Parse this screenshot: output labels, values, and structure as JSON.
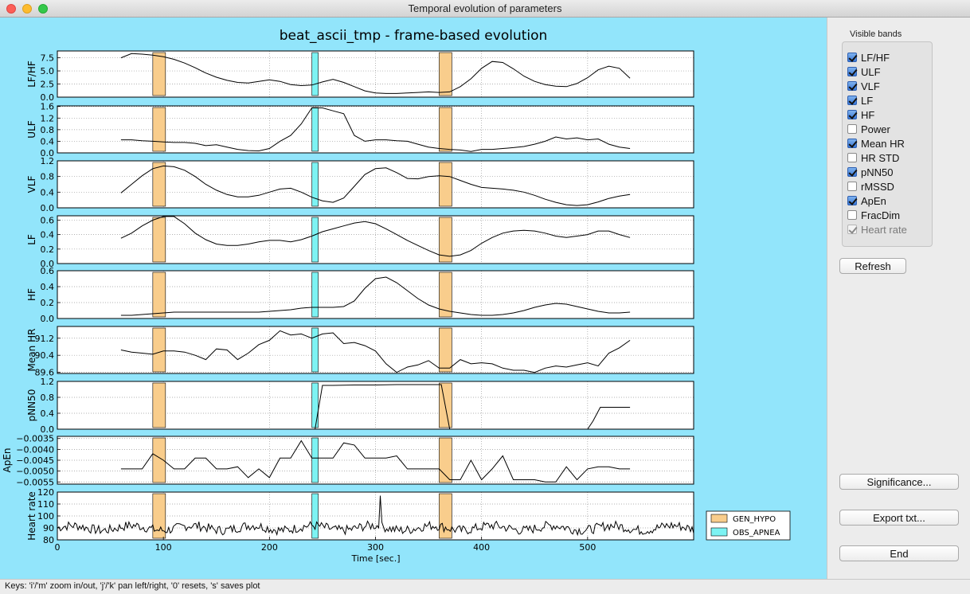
{
  "window": {
    "title": "Temporal evolution of parameters"
  },
  "figure": {
    "title": "beat_ascii_tmp - frame-based evolution",
    "xlabel": "Time [sec.]",
    "x_ticks": [
      "0",
      "100",
      "200",
      "300",
      "400",
      "500"
    ],
    "legend": [
      {
        "label": "GEN_HYPO",
        "color": "#f9cd8c"
      },
      {
        "label": "OBS_APNEA",
        "color": "#7df3f3"
      }
    ]
  },
  "chart_data": [
    {
      "type": "line",
      "ylabel": "LF/HF",
      "xlim": [
        0,
        600
      ],
      "ylim": [
        0,
        8.8
      ],
      "yticks": [
        "0.0",
        "2.5",
        "5.0",
        "7.5"
      ],
      "x": [
        60,
        70,
        80,
        90,
        100,
        110,
        120,
        130,
        140,
        150,
        160,
        170,
        180,
        190,
        200,
        210,
        220,
        230,
        240,
        250,
        260,
        270,
        280,
        290,
        300,
        310,
        320,
        330,
        340,
        350,
        360,
        370,
        380,
        390,
        400,
        410,
        420,
        430,
        440,
        450,
        460,
        470,
        480,
        490,
        500,
        510,
        520,
        530,
        540
      ],
      "values": [
        7.5,
        8.3,
        8.2,
        8.0,
        7.7,
        7.2,
        6.5,
        5.6,
        4.6,
        3.8,
        3.2,
        2.8,
        2.7,
        3.0,
        3.3,
        3.0,
        2.4,
        2.2,
        2.3,
        2.9,
        3.4,
        2.8,
        2.0,
        1.2,
        0.8,
        0.7,
        0.7,
        0.8,
        0.9,
        1.0,
        0.9,
        1.0,
        2.0,
        3.5,
        5.5,
        6.8,
        6.6,
        5.4,
        4.0,
        3.0,
        2.4,
        2.1,
        2.0,
        2.6,
        3.7,
        5.2,
        5.9,
        5.5,
        3.6
      ]
    },
    {
      "type": "line",
      "ylabel": "ULF",
      "xlim": [
        0,
        600
      ],
      "ylim": [
        0,
        1.62
      ],
      "yticks": [
        "0.0",
        "0.4",
        "0.8",
        "1.2",
        "1.6"
      ],
      "x": [
        60,
        70,
        80,
        90,
        100,
        110,
        120,
        130,
        140,
        150,
        160,
        170,
        180,
        190,
        200,
        210,
        220,
        230,
        240,
        250,
        260,
        270,
        280,
        290,
        300,
        310,
        320,
        330,
        340,
        350,
        360,
        370,
        380,
        390,
        400,
        410,
        420,
        430,
        440,
        450,
        460,
        470,
        480,
        490,
        500,
        510,
        520,
        530,
        540
      ],
      "values": [
        0.45,
        0.45,
        0.42,
        0.4,
        0.38,
        0.36,
        0.36,
        0.33,
        0.25,
        0.28,
        0.2,
        0.12,
        0.08,
        0.07,
        0.15,
        0.4,
        0.6,
        1.0,
        1.55,
        1.55,
        1.45,
        1.35,
        0.6,
        0.4,
        0.45,
        0.45,
        0.42,
        0.4,
        0.3,
        0.2,
        0.15,
        0.12,
        0.1,
        0.05,
        0.12,
        0.12,
        0.15,
        0.18,
        0.22,
        0.3,
        0.4,
        0.55,
        0.48,
        0.52,
        0.45,
        0.48,
        0.3,
        0.2,
        0.15
      ]
    },
    {
      "type": "line",
      "ylabel": "VLF",
      "xlim": [
        0,
        600
      ],
      "ylim": [
        0,
        1.2
      ],
      "yticks": [
        "0.0",
        "0.4",
        "0.8",
        "1.2"
      ],
      "x": [
        60,
        70,
        80,
        90,
        100,
        110,
        120,
        130,
        140,
        150,
        160,
        170,
        180,
        190,
        200,
        210,
        220,
        230,
        240,
        250,
        260,
        270,
        280,
        290,
        300,
        310,
        320,
        330,
        340,
        350,
        360,
        370,
        380,
        390,
        400,
        410,
        420,
        430,
        440,
        450,
        460,
        470,
        480,
        490,
        500,
        510,
        520,
        530,
        540
      ],
      "values": [
        0.38,
        0.6,
        0.82,
        1.0,
        1.07,
        1.05,
        0.96,
        0.8,
        0.6,
        0.45,
        0.34,
        0.28,
        0.28,
        0.32,
        0.4,
        0.48,
        0.5,
        0.4,
        0.27,
        0.18,
        0.14,
        0.25,
        0.55,
        0.85,
        1.0,
        1.02,
        0.9,
        0.75,
        0.74,
        0.8,
        0.82,
        0.8,
        0.7,
        0.6,
        0.52,
        0.5,
        0.48,
        0.45,
        0.4,
        0.32,
        0.22,
        0.14,
        0.08,
        0.06,
        0.08,
        0.15,
        0.24,
        0.3,
        0.34
      ]
    },
    {
      "type": "line",
      "ylabel": "LF",
      "xlim": [
        0,
        600
      ],
      "ylim": [
        0,
        0.66
      ],
      "yticks": [
        "0.0",
        "0.2",
        "0.4",
        "0.6"
      ],
      "x": [
        60,
        70,
        80,
        90,
        100,
        110,
        120,
        130,
        140,
        150,
        160,
        170,
        180,
        190,
        200,
        210,
        220,
        230,
        240,
        250,
        260,
        270,
        280,
        290,
        300,
        310,
        320,
        330,
        340,
        350,
        360,
        370,
        380,
        390,
        400,
        410,
        420,
        430,
        440,
        450,
        460,
        470,
        480,
        490,
        500,
        510,
        520,
        530,
        540
      ],
      "values": [
        0.35,
        0.42,
        0.52,
        0.6,
        0.65,
        0.65,
        0.55,
        0.42,
        0.33,
        0.27,
        0.25,
        0.25,
        0.27,
        0.3,
        0.32,
        0.32,
        0.3,
        0.33,
        0.38,
        0.44,
        0.48,
        0.52,
        0.56,
        0.58,
        0.55,
        0.48,
        0.4,
        0.32,
        0.25,
        0.18,
        0.12,
        0.1,
        0.12,
        0.18,
        0.28,
        0.36,
        0.42,
        0.45,
        0.46,
        0.45,
        0.42,
        0.38,
        0.36,
        0.38,
        0.4,
        0.45,
        0.45,
        0.4,
        0.36
      ]
    },
    {
      "type": "line",
      "ylabel": "HF",
      "xlim": [
        0,
        600
      ],
      "ylim": [
        0,
        0.6
      ],
      "yticks": [
        "0.0",
        "0.2",
        "0.4",
        "0.6"
      ],
      "x": [
        60,
        70,
        80,
        90,
        100,
        110,
        120,
        130,
        140,
        150,
        160,
        170,
        180,
        190,
        200,
        210,
        220,
        230,
        240,
        250,
        260,
        270,
        280,
        290,
        300,
        310,
        320,
        330,
        340,
        350,
        360,
        370,
        380,
        390,
        400,
        410,
        420,
        430,
        440,
        450,
        460,
        470,
        480,
        490,
        500,
        510,
        520,
        530,
        540
      ],
      "values": [
        0.04,
        0.04,
        0.05,
        0.06,
        0.07,
        0.08,
        0.08,
        0.08,
        0.08,
        0.08,
        0.08,
        0.08,
        0.08,
        0.08,
        0.09,
        0.1,
        0.11,
        0.13,
        0.14,
        0.14,
        0.14,
        0.15,
        0.22,
        0.38,
        0.5,
        0.52,
        0.45,
        0.35,
        0.25,
        0.17,
        0.12,
        0.09,
        0.07,
        0.05,
        0.04,
        0.04,
        0.05,
        0.07,
        0.1,
        0.14,
        0.17,
        0.19,
        0.18,
        0.15,
        0.12,
        0.09,
        0.07,
        0.07,
        0.08
      ]
    },
    {
      "type": "line",
      "ylabel": "Mean HR",
      "xlim": [
        0,
        600
      ],
      "ylim": [
        89.55,
        91.75
      ],
      "yticks": [
        "89.6",
        "90.4",
        "91.2"
      ],
      "x": [
        60,
        70,
        80,
        90,
        100,
        110,
        120,
        130,
        140,
        150,
        160,
        170,
        180,
        190,
        200,
        210,
        220,
        230,
        240,
        250,
        260,
        270,
        280,
        290,
        300,
        310,
        320,
        330,
        340,
        350,
        360,
        370,
        380,
        390,
        400,
        410,
        420,
        430,
        440,
        450,
        460,
        470,
        480,
        490,
        500,
        510,
        520,
        530,
        540
      ],
      "values": [
        90.65,
        90.55,
        90.5,
        90.45,
        90.6,
        90.6,
        90.55,
        90.4,
        90.2,
        90.7,
        90.65,
        90.2,
        90.5,
        90.9,
        91.1,
        91.55,
        91.35,
        91.4,
        91.2,
        91.4,
        91.45,
        90.95,
        91.0,
        90.85,
        90.6,
        90.0,
        89.6,
        89.85,
        89.95,
        90.15,
        89.8,
        89.8,
        90.2,
        90.0,
        90.05,
        90.0,
        89.8,
        89.7,
        89.7,
        89.6,
        89.8,
        89.9,
        89.85,
        89.95,
        90.05,
        89.9,
        90.5,
        90.75,
        91.1
      ]
    },
    {
      "type": "line",
      "ylabel": "pNN50",
      "xlim": [
        0,
        600
      ],
      "ylim": [
        0,
        1.2
      ],
      "yticks": [
        "0.0",
        "0.4",
        "0.8",
        "1.2"
      ],
      "x": [
        240,
        243,
        250,
        260,
        280,
        300,
        320,
        340,
        355,
        362,
        370,
        500,
        505,
        512,
        540
      ],
      "values": [
        0,
        0,
        1.1,
        1.1,
        1.11,
        1.11,
        1.12,
        1.12,
        1.12,
        1.12,
        0,
        0,
        0.2,
        0.55,
        0.55
      ]
    },
    {
      "type": "line",
      "ylabel": "ApEn",
      "xlim": [
        0,
        600
      ],
      "ylim": [
        -0.0056,
        -0.0034
      ],
      "yticks": [
        "−0.0055",
        "−0.0050",
        "−0.0045",
        "−0.0040",
        "−0.0035"
      ],
      "x": [
        60,
        70,
        80,
        90,
        100,
        110,
        120,
        130,
        140,
        150,
        160,
        170,
        180,
        190,
        200,
        210,
        220,
        230,
        240,
        250,
        260,
        270,
        280,
        290,
        300,
        310,
        320,
        330,
        340,
        350,
        360,
        370,
        380,
        390,
        400,
        410,
        420,
        430,
        440,
        450,
        460,
        470,
        480,
        490,
        500,
        510,
        520,
        530,
        540
      ],
      "values": [
        -0.0049,
        -0.0049,
        -0.0049,
        -0.0042,
        -0.0045,
        -0.0049,
        -0.0049,
        -0.0044,
        -0.0044,
        -0.0049,
        -0.0049,
        -0.0048,
        -0.0053,
        -0.0049,
        -0.0053,
        -0.0044,
        -0.0044,
        -0.0036,
        -0.0044,
        -0.0044,
        -0.0044,
        -0.0037,
        -0.0038,
        -0.0044,
        -0.0044,
        -0.0044,
        -0.0043,
        -0.0049,
        -0.0049,
        -0.0049,
        -0.0049,
        -0.0054,
        -0.0054,
        -0.0045,
        -0.0054,
        -0.0049,
        -0.0043,
        -0.0054,
        -0.0054,
        -0.0054,
        -0.0055,
        -0.0055,
        -0.0048,
        -0.0054,
        -0.0049,
        -0.0048,
        -0.0048,
        -0.0049,
        -0.0049
      ]
    },
    {
      "type": "line",
      "ylabel": "Heart rate",
      "xlim": [
        0,
        600
      ],
      "ylim": [
        80,
        120
      ],
      "yticks": [
        "80",
        "90",
        "100",
        "110",
        "120"
      ],
      "x_start": 0,
      "x_end": 600,
      "baseline": 90,
      "spike_x": 305,
      "spike_value": 117
    }
  ],
  "annotations": {
    "GEN_HYPO_intervals": [
      [
        90,
        102
      ],
      [
        360,
        372
      ]
    ],
    "OBS_APNEA_intervals": [
      [
        240,
        246
      ]
    ]
  },
  "panel": {
    "group_title": "Visible bands",
    "bands": [
      {
        "label": "LF/HF",
        "checked": true,
        "enabled": true
      },
      {
        "label": "ULF",
        "checked": true,
        "enabled": true
      },
      {
        "label": "VLF",
        "checked": true,
        "enabled": true
      },
      {
        "label": "LF",
        "checked": true,
        "enabled": true
      },
      {
        "label": "HF",
        "checked": true,
        "enabled": true
      },
      {
        "label": "Power",
        "checked": false,
        "enabled": true
      },
      {
        "label": "Mean HR",
        "checked": true,
        "enabled": true
      },
      {
        "label": "HR STD",
        "checked": false,
        "enabled": true
      },
      {
        "label": "pNN50",
        "checked": true,
        "enabled": true
      },
      {
        "label": "rMSSD",
        "checked": false,
        "enabled": true
      },
      {
        "label": "ApEn",
        "checked": true,
        "enabled": true
      },
      {
        "label": "FracDim",
        "checked": false,
        "enabled": true
      },
      {
        "label": "Heart rate",
        "checked": true,
        "enabled": false
      }
    ],
    "refresh_label": "Refresh",
    "significance_label": "Significance...",
    "export_label": "Export txt...",
    "end_label": "End"
  },
  "statusbar": {
    "text": "Keys: 'i'/'m' zoom in/out, 'j'/'k' pan left/right, '0' resets, 's' saves plot"
  }
}
